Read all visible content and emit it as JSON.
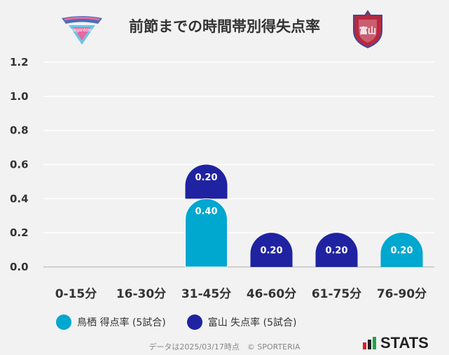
{
  "title": "前節までの時間帯別得失点率",
  "home_logo_text": "sagantosu",
  "away_logo_text": "富山",
  "colors": {
    "home": "#00a7cf",
    "away": "#1f23a1",
    "grid": "#ffffff",
    "axis": "#cfcfcf"
  },
  "chart_data": {
    "type": "bar",
    "categories": [
      "0-15分",
      "16-30分",
      "31-45分",
      "46-60分",
      "61-75分",
      "76-90分"
    ],
    "series": [
      {
        "name": "鳥栖 得点率 (5試合)",
        "values": [
          0,
          0,
          0.4,
          0,
          0,
          0.2
        ]
      },
      {
        "name": "富山 失点率 (5試合)",
        "values": [
          0,
          0,
          0.2,
          0.2,
          0.2,
          0
        ]
      }
    ],
    "ylim": [
      0,
      1.2
    ],
    "yticks": [
      "0.0",
      "0.2",
      "0.4",
      "0.6",
      "0.8",
      "1.0",
      "1.2"
    ],
    "stacked": true,
    "grid": true,
    "legend": "bottom-left"
  },
  "legend": [
    {
      "label": "鳥栖 得点率 (5試合)",
      "icon": "dot-cyan"
    },
    {
      "label": "富山 失点率 (5試合)",
      "icon": "dot-navy"
    }
  ],
  "footer": "データは2025/03/17時点　© SPORTERIA",
  "brand": "STATS"
}
